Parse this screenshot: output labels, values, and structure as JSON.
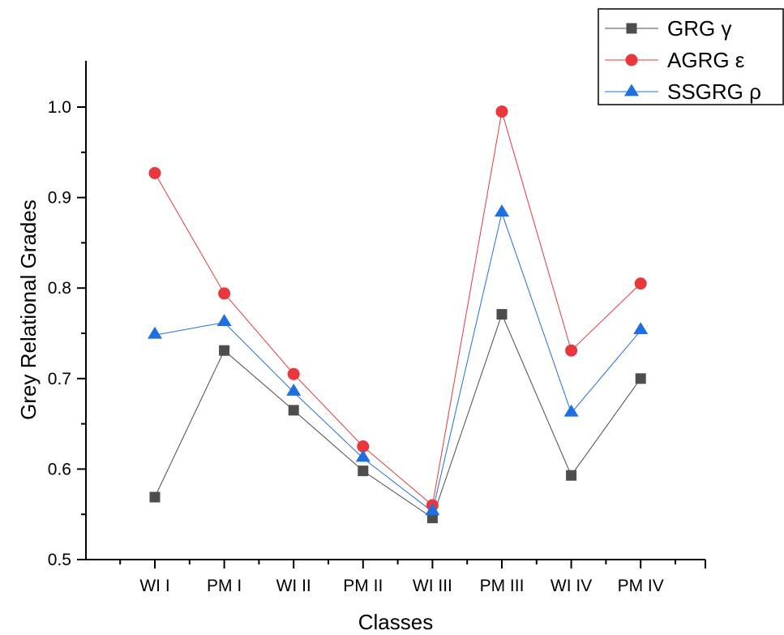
{
  "chart_data": {
    "type": "line",
    "title": "",
    "xlabel": "Classes",
    "ylabel": "Grey Relational Grades",
    "categories": [
      "WI I",
      "PM I",
      "WI II",
      "PM II",
      "WI III",
      "PM III",
      "WI IV",
      "PM IV"
    ],
    "ylim": [
      0.5,
      1.05
    ],
    "yticks": [
      "0.5",
      "0.6",
      "0.7",
      "0.8",
      "0.9",
      "1.0"
    ],
    "grid": false,
    "legend_position": "top-right",
    "series": [
      {
        "name": "GRG γ",
        "color": "#4d4d4d",
        "marker": "square",
        "values": [
          0.569,
          0.731,
          0.665,
          0.598,
          0.546,
          0.771,
          0.593,
          0.7
        ]
      },
      {
        "name": "AGRG ε",
        "color": "#e8383d",
        "marker": "circle",
        "values": [
          0.927,
          0.794,
          0.705,
          0.625,
          0.56,
          0.995,
          0.731,
          0.805
        ]
      },
      {
        "name": "SSGRG ρ",
        "color": "#1f6fe0",
        "marker": "triangle",
        "values": [
          0.748,
          0.762,
          0.685,
          0.612,
          0.553,
          0.883,
          0.662,
          0.753
        ]
      }
    ]
  }
}
